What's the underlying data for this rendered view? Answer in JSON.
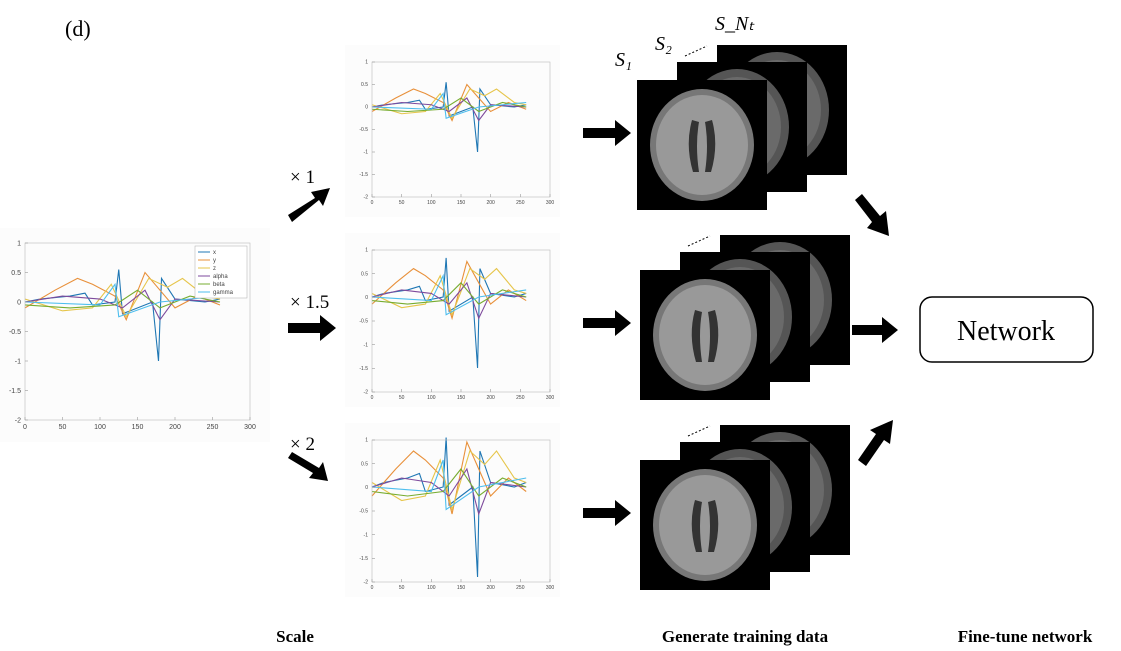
{
  "panel_label": "(d)",
  "source_plot": {
    "xlim": [
      0,
      300
    ],
    "ylim": [
      -2,
      1
    ],
    "xticks": [
      0,
      50,
      100,
      150,
      200,
      250,
      300
    ],
    "yticks": [
      1,
      0.5,
      0,
      -0.5,
      -1,
      -1.5,
      -2
    ],
    "legend": [
      "x",
      "y",
      "z",
      "alpha",
      "beta",
      "gamma"
    ]
  },
  "scaled_plots": [
    {
      "factor_label": "× 1",
      "xticks": [
        0,
        50,
        100,
        150,
        200,
        250,
        300
      ],
      "yticks": [
        1,
        0.5,
        0,
        -0.5,
        -1,
        -1.5,
        -2
      ]
    },
    {
      "factor_label": "× 1.5",
      "xticks": [
        0,
        50,
        100,
        150,
        200,
        250,
        300
      ],
      "yticks": [
        1,
        0.5,
        0,
        -0.5,
        -1,
        -1.5,
        -2
      ]
    },
    {
      "factor_label": "× 2",
      "xticks": [
        0,
        50,
        100,
        150,
        200,
        250,
        300
      ],
      "yticks": [
        1,
        0.5,
        0,
        -0.5,
        -1,
        -1.5,
        -2
      ]
    }
  ],
  "slice_labels": [
    "S₁",
    "S₂",
    "S_Nₜ"
  ],
  "network": "Network",
  "stage_captions": [
    "Scale",
    "Generate training data",
    "Fine-tune network"
  ]
}
